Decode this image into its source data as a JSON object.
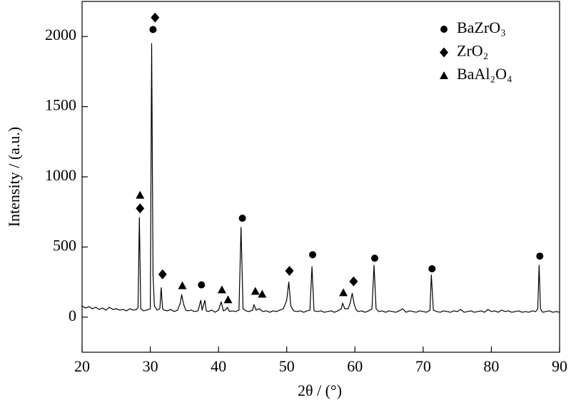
{
  "chart_data": {
    "type": "line",
    "x_label": "2θ / (°)",
    "y_label": "Intensity / (a.u.)",
    "xlim": [
      20,
      90
    ],
    "ylim": [
      -250,
      2250
    ],
    "xticks": [
      20,
      30,
      40,
      50,
      60,
      70,
      80,
      90
    ],
    "yticks": [
      0,
      500,
      1000,
      1500,
      2000
    ],
    "legend": "upper right",
    "color": "#000000",
    "x": [
      20,
      20.5,
      21,
      21.5,
      22,
      22.5,
      23,
      23.5,
      24,
      24.5,
      25,
      25.5,
      26,
      26.5,
      27,
      27.5,
      28,
      28.2,
      28.4,
      28.6,
      29,
      29.5,
      30,
      30.2,
      30.4,
      30.6,
      31,
      31.4,
      31.6,
      31.8,
      32,
      32.5,
      33,
      33.5,
      34,
      34.4,
      34.6,
      34.9,
      35.2,
      35.5,
      36,
      36.5,
      37,
      37.4,
      37.6,
      38,
      38.2,
      38.5,
      39,
      39.5,
      40,
      40.4,
      40.7,
      41,
      41.3,
      41.6,
      42,
      42.5,
      43,
      43.3,
      43.6,
      44,
      44.5,
      45,
      45.2,
      45.5,
      46,
      46.5,
      47,
      47.5,
      48,
      48.5,
      49,
      49.5,
      50,
      50.3,
      50.6,
      51,
      51.5,
      52,
      52.5,
      53,
      53.4,
      53.7,
      54,
      54.5,
      55,
      55.5,
      56,
      56.5,
      57,
      57.5,
      58,
      58.2,
      58.5,
      59,
      59.3,
      59.6,
      59.9,
      60.2,
      60.5,
      61,
      61.5,
      62,
      62.5,
      62.8,
      63.1,
      63.5,
      64,
      64.5,
      65,
      65.5,
      66,
      66.5,
      67,
      67.5,
      68,
      68.5,
      69,
      69.5,
      70,
      70.5,
      71,
      71.2,
      71.5,
      72,
      72.5,
      73,
      73.5,
      74,
      74.5,
      75,
      75.5,
      76,
      76.5,
      77,
      77.5,
      78,
      78.5,
      79,
      79.5,
      80,
      80.5,
      81,
      81.5,
      82,
      82.5,
      83,
      83.5,
      84,
      84.5,
      85,
      85.5,
      86,
      86.5,
      86.8,
      87,
      87.2,
      87.5,
      88,
      88.5,
      89,
      89.5,
      90
    ],
    "values": [
      80,
      65,
      75,
      60,
      70,
      55,
      65,
      50,
      70,
      55,
      60,
      50,
      55,
      45,
      60,
      50,
      55,
      70,
      710,
      60,
      45,
      50,
      60,
      1950,
      300,
      80,
      50,
      60,
      210,
      60,
      50,
      45,
      55,
      40,
      50,
      100,
      160,
      90,
      50,
      45,
      50,
      40,
      45,
      120,
      50,
      120,
      45,
      40,
      50,
      35,
      50,
      110,
      45,
      50,
      70,
      40,
      45,
      40,
      50,
      640,
      60,
      45,
      40,
      50,
      90,
      50,
      60,
      40,
      45,
      35,
      45,
      40,
      50,
      60,
      120,
      250,
      80,
      45,
      40,
      45,
      35,
      45,
      50,
      360,
      45,
      40,
      45,
      35,
      40,
      45,
      35,
      45,
      60,
      100,
      60,
      60,
      100,
      170,
      90,
      50,
      40,
      45,
      35,
      45,
      60,
      370,
      60,
      40,
      45,
      35,
      45,
      40,
      35,
      45,
      60,
      35,
      45,
      40,
      35,
      45,
      40,
      35,
      50,
      300,
      50,
      40,
      35,
      45,
      40,
      35,
      45,
      40,
      55,
      35,
      40,
      45,
      35,
      40,
      45,
      35,
      55,
      40,
      45,
      35,
      50,
      40,
      45,
      35,
      40,
      45,
      35,
      40,
      35,
      45,
      40,
      60,
      370,
      60,
      35,
      40,
      45,
      35,
      40,
      35
    ],
    "markers": [
      {
        "name": "BaZrO₃",
        "shape": "circle",
        "color": "#000000",
        "x": [
          30.4,
          37.5,
          43.5,
          53.8,
          62.9,
          71.3,
          87.1
        ],
        "values": [
          2050,
          230,
          705,
          445,
          420,
          345,
          435
        ]
      },
      {
        "name": "ZrO₂",
        "shape": "diamond",
        "color": "#000000",
        "x": [
          28.5,
          30.7,
          31.8,
          50.4,
          59.8
        ],
        "values": [
          775,
          2135,
          305,
          330,
          255
        ]
      },
      {
        "name": "BaAl₂O₄",
        "shape": "triangle",
        "color": "#000000",
        "x": [
          28.5,
          34.7,
          40.5,
          41.4,
          45.4,
          46.4,
          58.3
        ],
        "values": [
          870,
          225,
          195,
          125,
          185,
          165,
          175
        ]
      }
    ]
  }
}
